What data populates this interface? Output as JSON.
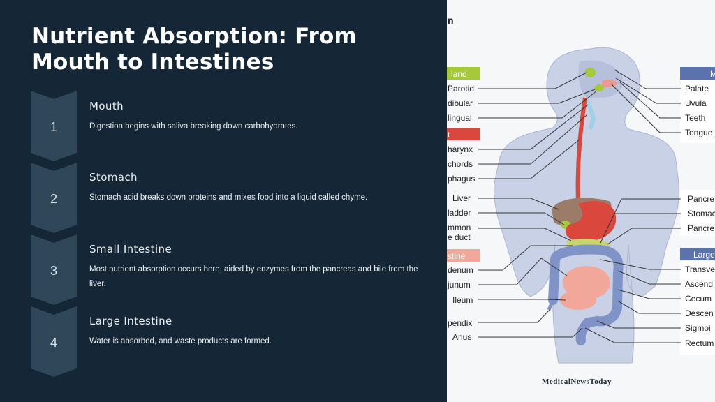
{
  "slide": {
    "title": "Nutrient Absorption: From Mouth to Intestines",
    "steps": [
      {
        "number": "1",
        "title": "Mouth",
        "description": "Digestion begins with saliva breaking down carbohydrates."
      },
      {
        "number": "2",
        "title": "Stomach",
        "description": "Stomach acid breaks down proteins and mixes food into a liquid called chyme."
      },
      {
        "number": "3",
        "title": "Small Intestine",
        "description": "Most nutrient absorption occurs here, aided by enzymes from the pancreas and bile from the liver."
      },
      {
        "number": "4",
        "title": "Large Intestine",
        "description": "Water is absorbed, and waste products are formed."
      }
    ]
  },
  "diagram": {
    "header_fragment": "n",
    "left_headers": [
      {
        "text": "land",
        "color": "#a5c93b"
      },
      {
        "text": "t",
        "color": "#d9473d"
      },
      {
        "text": "stine",
        "color": "#f2a79b"
      }
    ],
    "left_labels": [
      "Parotid",
      "dibular",
      "lingual",
      "harynx",
      "chords",
      "phagus",
      "Liver",
      "ladder",
      "mmon",
      "e duct",
      "denum",
      "junum",
      "Ileum",
      "pendix",
      "Anus"
    ],
    "right_headers": [
      {
        "text": "M",
        "color": "#5a73ac"
      },
      {
        "text": "Large",
        "color": "#5a73ac"
      }
    ],
    "right_labels": [
      "Palate",
      "Uvula",
      "Teeth",
      "Tongue",
      "Pancre",
      "Stomac",
      "Pancre",
      "Transve",
      "Ascend",
      "Cecum",
      "Descen",
      "Sigmoi",
      "Rectum"
    ],
    "credit": "MedicalNewsToday",
    "colors": {
      "body": "#c9d1e6",
      "esophagus": "#d9473d",
      "liver": "#9a7c68",
      "stomach": "#d9473d",
      "small_intestine": "#f2a79b",
      "large_intestine": "#7f93c6",
      "gland": "#a5c93b"
    }
  }
}
